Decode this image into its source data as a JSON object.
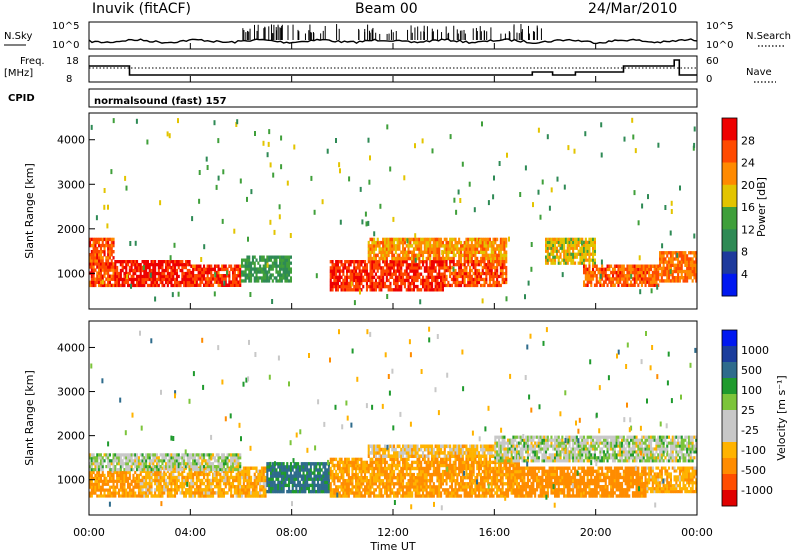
{
  "header": {
    "station": "Inuvik (fitACF)",
    "beam": "Beam 00",
    "date": "24/Mar/2010"
  },
  "noise_panel": {
    "left_label": "N.Sky",
    "left_ticks": [
      "10^5",
      "10^0"
    ],
    "right_ticks": [
      "10^5",
      "10^0"
    ],
    "right_label": "N.Search"
  },
  "freq_panel": {
    "left_label": "Freq.",
    "left_unit": "[MHz]",
    "left_ticks": [
      "18",
      "8"
    ],
    "right_ticks": [
      "60",
      "0"
    ],
    "right_label": "Nave"
  },
  "cpid": {
    "label": "CPID",
    "value": "normalsound (fast) 157"
  },
  "x_axis": {
    "label": "Time UT",
    "ticks": [
      "00:00",
      "04:00",
      "08:00",
      "12:00",
      "16:00",
      "20:00",
      "00:00"
    ]
  },
  "colors": {
    "power": [
      "#0018f0",
      "#1e3a9c",
      "#2e8a55",
      "#3f9f3a",
      "#e3c400",
      "#ff8a00",
      "#ff4a00",
      "#ee0000"
    ],
    "velocity": [
      "#e00000",
      "#ff4d00",
      "#ff8c00",
      "#ffb300",
      "#c8c8c8",
      "#c8c8c8",
      "#7cc43a",
      "#1f9a2d",
      "#2e6b8c",
      "#1b3d9c",
      "#0018f0"
    ]
  },
  "chart_data": [
    {
      "type": "heatmap",
      "name": "power-panel",
      "ylabel": "Slant Range [km]",
      "yticks": [
        "1000",
        "2000",
        "3000",
        "4000"
      ],
      "ylim": [
        200,
        4600
      ],
      "xlim_hours": [
        0,
        24
      ],
      "colorbar": {
        "label": "Power [dB]",
        "ticks": [
          "4",
          "8",
          "12",
          "16",
          "20",
          "24",
          "28"
        ],
        "range": [
          0,
          32
        ]
      },
      "bands": [
        {
          "t0": 0,
          "t1": 1,
          "r0": 700,
          "r1": 1800,
          "value": 26
        },
        {
          "t0": 1,
          "t1": 4,
          "r0": 700,
          "r1": 1300,
          "value": 29
        },
        {
          "t0": 4,
          "t1": 6,
          "r0": 700,
          "r1": 1200,
          "value": 27
        },
        {
          "t0": 6,
          "t1": 8,
          "r0": 800,
          "r1": 1400,
          "value": 12
        },
        {
          "t0": 9.5,
          "t1": 14,
          "r0": 600,
          "r1": 1300,
          "value": 28
        },
        {
          "t0": 11,
          "t1": 16.5,
          "r0": 1300,
          "r1": 1800,
          "value": 22
        },
        {
          "t0": 14,
          "t1": 16.5,
          "r0": 700,
          "r1": 1300,
          "value": 26
        },
        {
          "t0": 18,
          "t1": 20,
          "r0": 1200,
          "r1": 1800,
          "value": 18
        },
        {
          "t0": 19.5,
          "t1": 22.5,
          "r0": 700,
          "r1": 1200,
          "value": 25
        },
        {
          "t0": 22.5,
          "t1": 24,
          "r0": 800,
          "r1": 1500,
          "value": 24
        }
      ]
    },
    {
      "type": "heatmap",
      "name": "velocity-panel",
      "ylabel": "Slant Range [km]",
      "yticks": [
        "1000",
        "2000",
        "3000",
        "4000"
      ],
      "ylim": [
        200,
        4600
      ],
      "xlim_hours": [
        0,
        24
      ],
      "colorbar": {
        "label": "Velocity [m s⁻¹]",
        "ticks": [
          "1000",
          "500",
          "100",
          "25",
          "-25",
          "-100",
          "-500",
          "-1000"
        ]
      },
      "bands": [
        {
          "t0": 0,
          "t1": 2,
          "r0": 600,
          "r1": 1200,
          "value": -300
        },
        {
          "t0": 2,
          "t1": 7,
          "r0": 600,
          "r1": 1300,
          "value": -200
        },
        {
          "t0": 0,
          "t1": 6,
          "r0": 1200,
          "r1": 1600,
          "value": 0
        },
        {
          "t0": 7,
          "t1": 9.5,
          "r0": 700,
          "r1": 1400,
          "value": 300
        },
        {
          "t0": 9.5,
          "t1": 13,
          "r0": 600,
          "r1": 1500,
          "value": -250
        },
        {
          "t0": 11,
          "t1": 16,
          "r0": 1500,
          "r1": 1800,
          "value": -150
        },
        {
          "t0": 13,
          "t1": 17,
          "r0": 600,
          "r1": 1500,
          "value": -300
        },
        {
          "t0": 16,
          "t1": 24,
          "r0": 1400,
          "r1": 2000,
          "value": 0
        },
        {
          "t0": 17,
          "t1": 22,
          "r0": 600,
          "r1": 1300,
          "value": -350
        },
        {
          "t0": 22,
          "t1": 24,
          "r0": 700,
          "r1": 1300,
          "value": -200
        }
      ]
    }
  ]
}
